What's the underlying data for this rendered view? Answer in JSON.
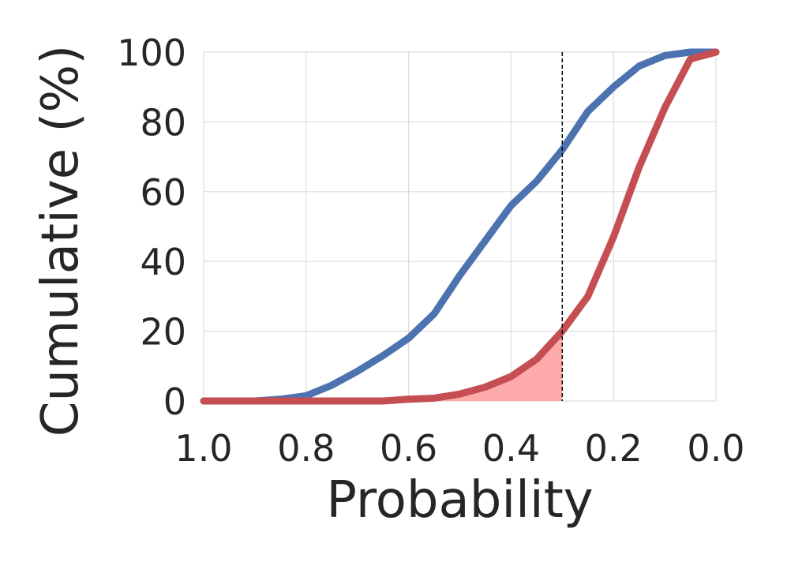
{
  "chart_data": {
    "type": "line",
    "xlabel": "Probability",
    "ylabel": "Cumulative (%)",
    "xlim": [
      1.0,
      0.0
    ],
    "ylim": [
      0,
      100
    ],
    "x_reversed": true,
    "xticks": [
      "1.0",
      "0.8",
      "0.6",
      "0.4",
      "0.2",
      "0.0"
    ],
    "yticks": [
      "0",
      "20",
      "40",
      "60",
      "80",
      "100"
    ],
    "grid": true,
    "threshold_x": 0.3,
    "series": [
      {
        "color": "#4c72b0",
        "x": [
          1.0,
          0.95,
          0.9,
          0.85,
          0.8,
          0.75,
          0.7,
          0.65,
          0.6,
          0.55,
          0.5,
          0.45,
          0.4,
          0.35,
          0.3,
          0.25,
          0.2,
          0.15,
          0.1,
          0.05,
          0.0
        ],
        "y": [
          0,
          0,
          0,
          0.5,
          1.5,
          4.5,
          8.5,
          13,
          18,
          25,
          36,
          46,
          56,
          63,
          72,
          83,
          90,
          96,
          99,
          100,
          100
        ]
      },
      {
        "color": "#c44e52",
        "x": [
          1.0,
          0.95,
          0.9,
          0.85,
          0.8,
          0.75,
          0.7,
          0.65,
          0.6,
          0.55,
          0.5,
          0.45,
          0.4,
          0.35,
          0.3,
          0.25,
          0.2,
          0.15,
          0.1,
          0.05,
          0.0
        ],
        "y": [
          0,
          0,
          0,
          0,
          0,
          0,
          0,
          0,
          0.5,
          0.8,
          2,
          4,
          7,
          12,
          20,
          30,
          47,
          67,
          84,
          98,
          100
        ]
      }
    ],
    "shaded_region": {
      "series_index": 1,
      "from_x": 1.0,
      "to_x": 0.3,
      "color": "#ffaaaa"
    }
  }
}
